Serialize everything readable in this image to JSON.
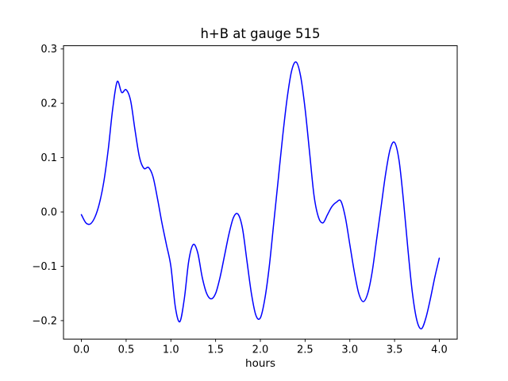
{
  "chart_data": {
    "type": "line",
    "title": "h+B at gauge 515",
    "xlabel": "hours",
    "ylabel": "",
    "legend": null,
    "grid": false,
    "line_color": "#0000ff",
    "line_width": 1.5,
    "xlim": [
      -0.2,
      4.2
    ],
    "ylim": [
      -0.234,
      0.306
    ],
    "xticks": [
      0.0,
      0.5,
      1.0,
      1.5,
      2.0,
      2.5,
      3.0,
      3.5,
      4.0
    ],
    "xtick_labels": [
      "0.0",
      "0.5",
      "1.0",
      "1.5",
      "2.0",
      "2.5",
      "3.0",
      "3.5",
      "4.0"
    ],
    "yticks": [
      0.3,
      0.2,
      0.1,
      0.0,
      -0.1,
      -0.2
    ],
    "ytick_labels": [
      "0.3",
      "0.2",
      "0.1",
      "0.0",
      "−0.1",
      "−0.2"
    ],
    "x": [
      0.0,
      0.05,
      0.1,
      0.15,
      0.2,
      0.25,
      0.3,
      0.35,
      0.4,
      0.45,
      0.5,
      0.55,
      0.6,
      0.65,
      0.7,
      0.75,
      0.8,
      0.85,
      0.9,
      0.95,
      1.0,
      1.05,
      1.1,
      1.15,
      1.2,
      1.25,
      1.3,
      1.35,
      1.4,
      1.45,
      1.5,
      1.55,
      1.6,
      1.65,
      1.7,
      1.75,
      1.8,
      1.85,
      1.9,
      1.95,
      2.0,
      2.05,
      2.1,
      2.15,
      2.2,
      2.25,
      2.3,
      2.35,
      2.4,
      2.45,
      2.5,
      2.55,
      2.6,
      2.65,
      2.7,
      2.75,
      2.8,
      2.85,
      2.9,
      2.95,
      3.0,
      3.05,
      3.1,
      3.15,
      3.2,
      3.25,
      3.3,
      3.35,
      3.4,
      3.45,
      3.5,
      3.55,
      3.6,
      3.65,
      3.7,
      3.75,
      3.8,
      3.85,
      3.9,
      3.95,
      4.0
    ],
    "y": [
      -0.005,
      -0.02,
      -0.022,
      -0.01,
      0.015,
      0.055,
      0.115,
      0.19,
      0.24,
      0.22,
      0.225,
      0.205,
      0.15,
      0.1,
      0.08,
      0.082,
      0.065,
      0.025,
      -0.02,
      -0.06,
      -0.1,
      -0.175,
      -0.202,
      -0.16,
      -0.09,
      -0.06,
      -0.075,
      -0.12,
      -0.15,
      -0.16,
      -0.15,
      -0.12,
      -0.08,
      -0.04,
      -0.01,
      -0.004,
      -0.03,
      -0.09,
      -0.15,
      -0.19,
      -0.195,
      -0.16,
      -0.1,
      -0.02,
      0.06,
      0.14,
      0.21,
      0.26,
      0.276,
      0.25,
      0.19,
      0.11,
      0.03,
      -0.01,
      -0.02,
      -0.005,
      0.01,
      0.018,
      0.02,
      -0.01,
      -0.06,
      -0.11,
      -0.15,
      -0.165,
      -0.15,
      -0.11,
      -0.05,
      0.01,
      0.07,
      0.115,
      0.128,
      0.095,
      0.02,
      -0.07,
      -0.15,
      -0.2,
      -0.215,
      -0.195,
      -0.16,
      -0.12,
      -0.085
    ]
  }
}
